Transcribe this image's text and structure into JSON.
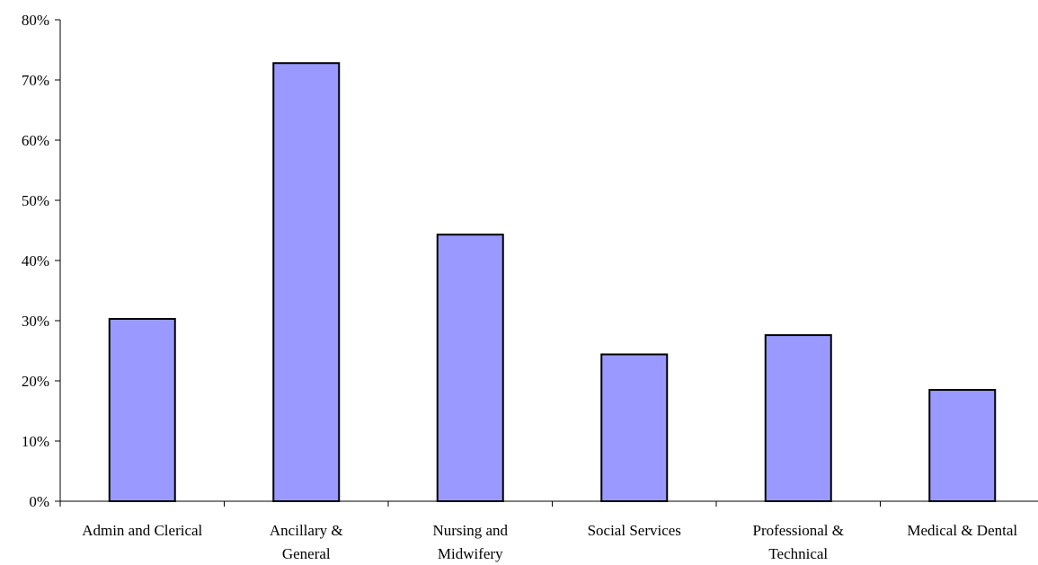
{
  "chart_data": {
    "type": "bar",
    "categories": [
      [
        "Admin and Clerical"
      ],
      [
        "Ancillary  &",
        "General"
      ],
      [
        "Nursing and",
        "Midwifery"
      ],
      [
        "Social Services"
      ],
      [
        "Professional &",
        "Technical"
      ],
      [
        "Medical & Dental"
      ]
    ],
    "values": [
      30.3,
      72.8,
      44.3,
      24.4,
      27.6,
      18.5
    ],
    "ylim": [
      0,
      80
    ],
    "yticks": [
      0,
      10,
      20,
      30,
      40,
      50,
      60,
      70,
      80
    ],
    "ytick_suffix": "%",
    "title": "",
    "xlabel": "",
    "ylabel": "",
    "legend": "none",
    "grid": false,
    "bar_color": "#9999ff",
    "bar_edge_color": "#000000"
  }
}
